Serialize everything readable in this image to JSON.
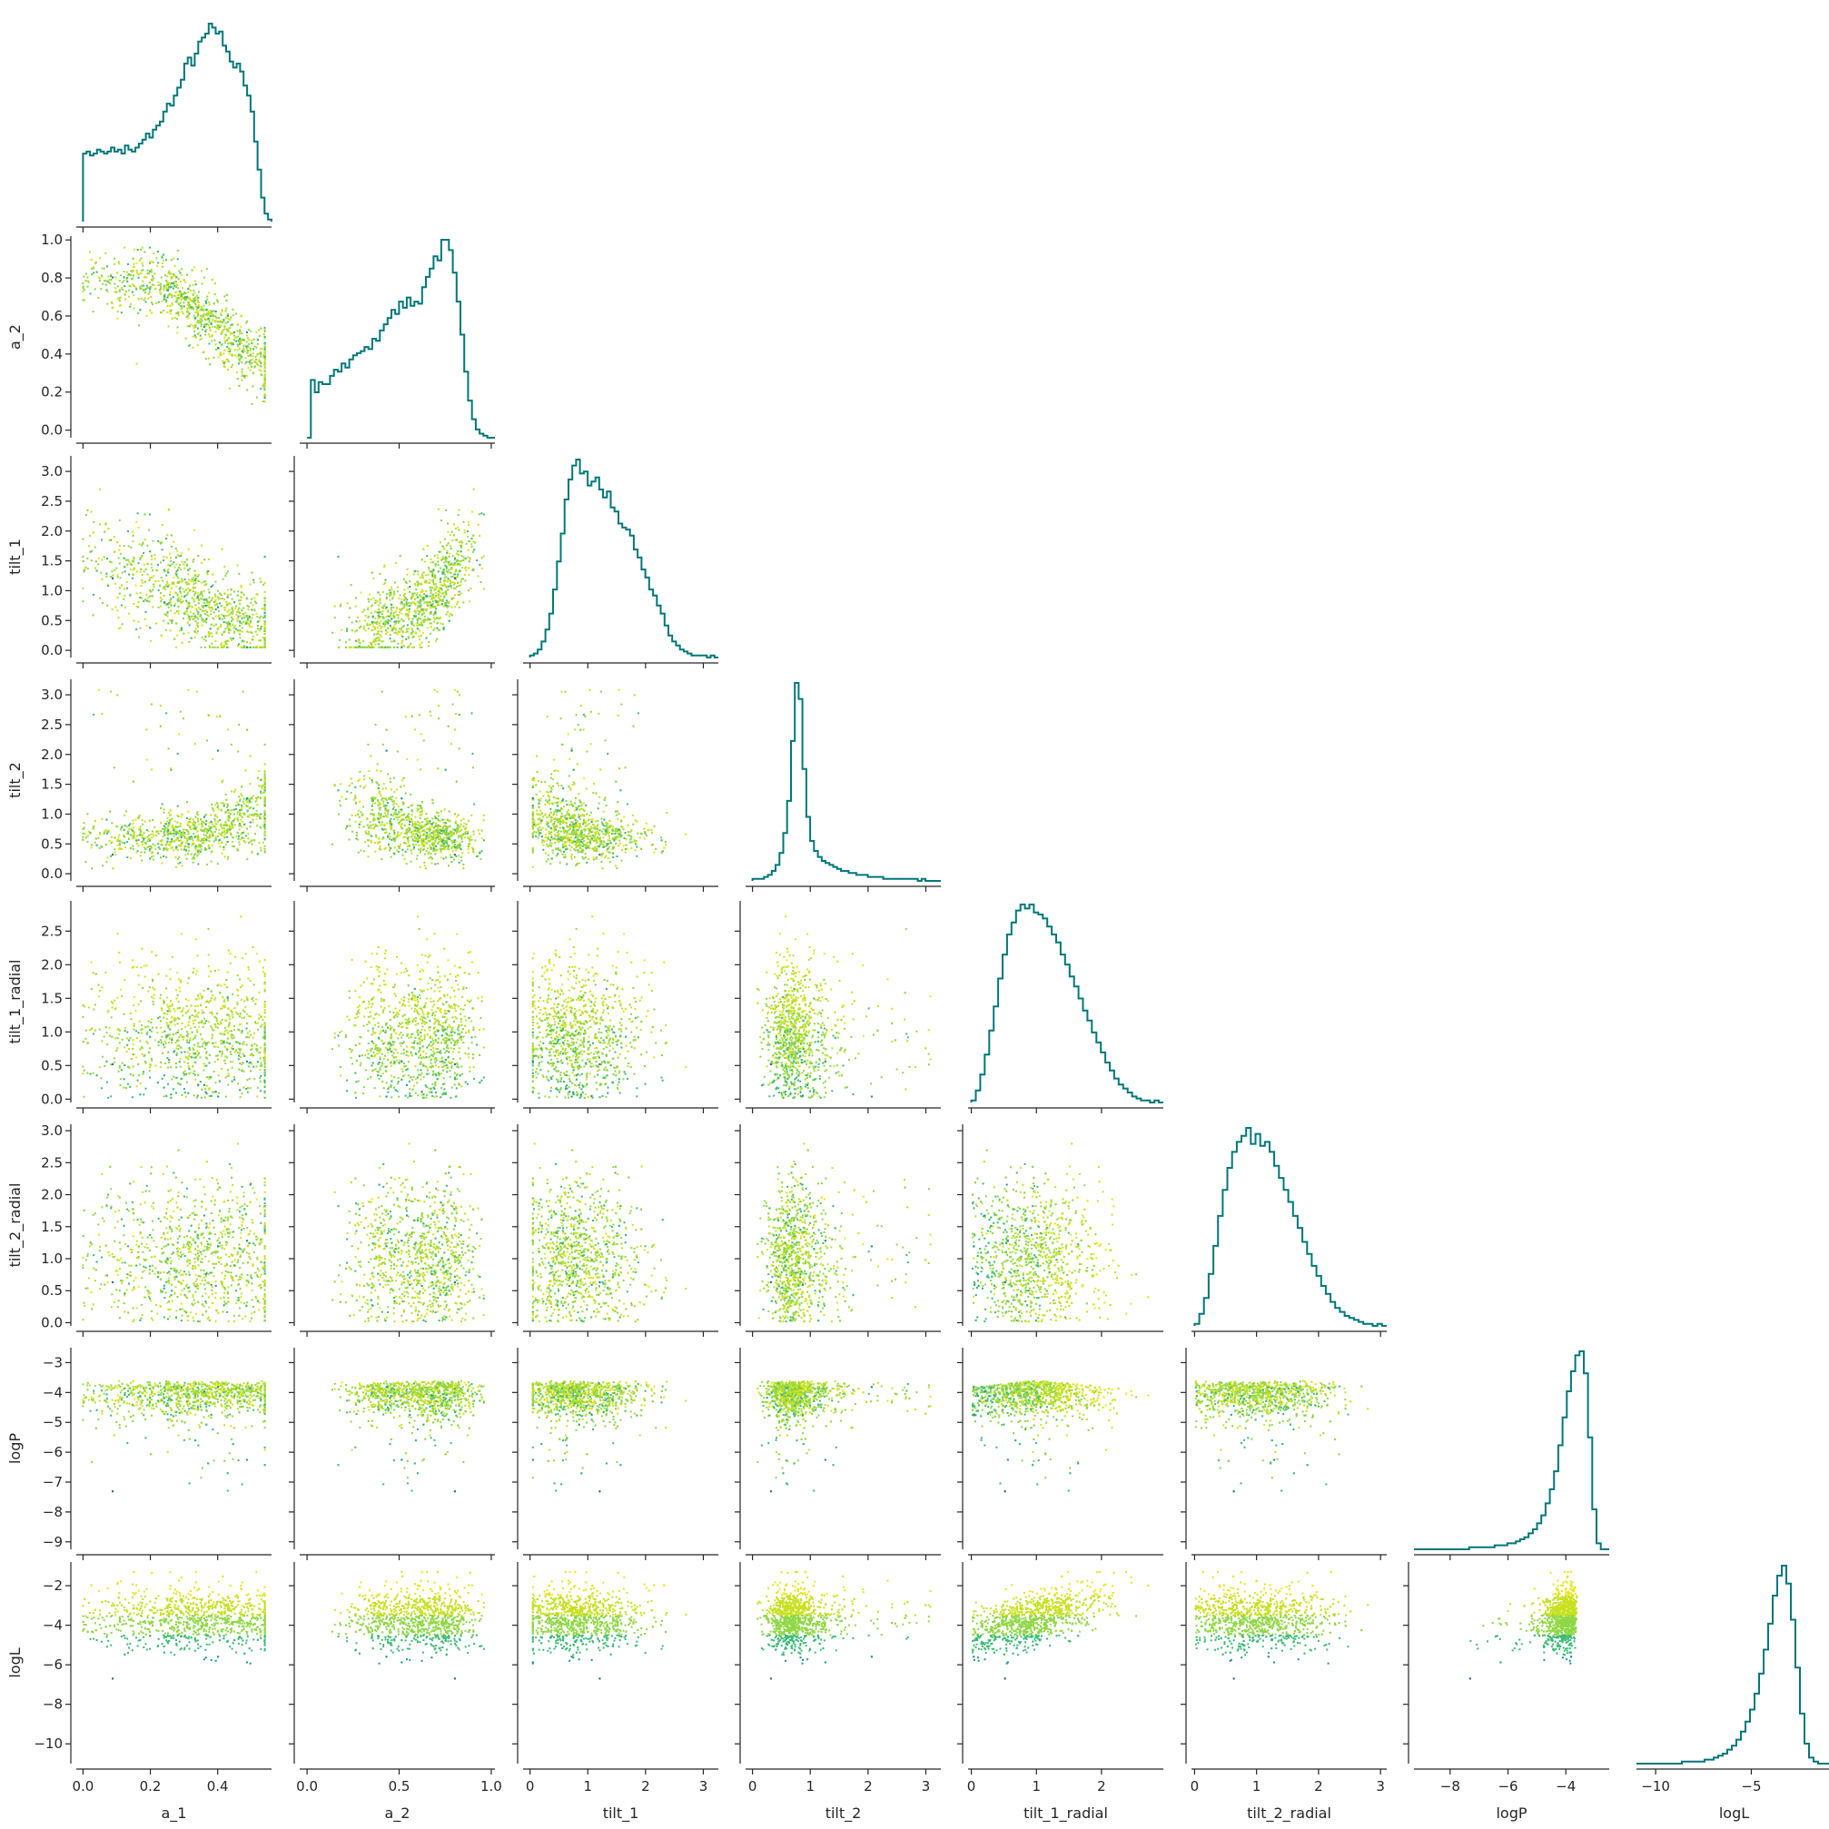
{
  "chart_data": {
    "type": "pairplot",
    "title": "",
    "variables": [
      "a_1",
      "a_2",
      "tilt_1",
      "tilt_2",
      "tilt_1_radial",
      "tilt_2_radial",
      "logP",
      "logL"
    ],
    "layout": "lower-triangle corner plot; histograms on diagonal, scatter below",
    "colors": {
      "histogram": "#00777a",
      "scatter_colormap": [
        "#2c6f8e",
        "#1f968b",
        "#3bba75",
        "#8fd744",
        "#c8e020",
        "#e7e419"
      ],
      "axis": "#262626"
    },
    "ranges": {
      "a_1": [
        -0.02,
        0.56
      ],
      "a_2": [
        -0.04,
        1.02
      ],
      "tilt_1": [
        -0.12,
        3.26
      ],
      "tilt_2": [
        -0.12,
        3.26
      ],
      "tilt_1_radial": [
        -0.05,
        2.95
      ],
      "tilt_2_radial": [
        -0.05,
        3.1
      ],
      "logP": [
        -9.25,
        -2.5
      ],
      "logL": [
        -11.0,
        -0.8
      ]
    },
    "ticks": {
      "a_1": [
        0.0,
        0.2,
        0.4
      ],
      "a_2": [
        0.0,
        0.2,
        0.4,
        0.6,
        0.8,
        1.0
      ],
      "a_2_x": [
        0.0,
        0.5,
        1.0
      ],
      "tilt_1": [
        0.0,
        0.5,
        1.0,
        1.5,
        2.0,
        2.5,
        3.0
      ],
      "tilt_1_x": [
        0,
        1,
        2,
        3
      ],
      "tilt_2": [
        0.0,
        0.5,
        1.0,
        1.5,
        2.0,
        2.5,
        3.0
      ],
      "tilt_2_x": [
        0,
        1,
        2,
        3
      ],
      "tilt_1_radial": [
        0.0,
        0.5,
        1.0,
        1.5,
        2.0,
        2.5
      ],
      "tilt_1_radial_x": [
        0,
        1,
        2
      ],
      "tilt_2_radial": [
        0.0,
        0.5,
        1.0,
        1.5,
        2.0,
        2.5,
        3.0
      ],
      "tilt_2_radial_x": [
        0,
        1,
        2,
        3
      ],
      "logP": [
        -9,
        -8,
        -7,
        -6,
        -5,
        -4,
        -3
      ],
      "logP_x": [
        -8,
        -6,
        -4
      ],
      "logL": [
        -10,
        -8,
        -6,
        -4,
        -2
      ],
      "logL_x": [
        -10,
        -5
      ]
    },
    "tick_labels": {
      "a_1": [
        "0.0",
        "0.2",
        "0.4"
      ],
      "a_2": [
        "0.0",
        "0.2",
        "0.4",
        "0.6",
        "0.8",
        "1.0"
      ],
      "a_2_x": [
        "0.0",
        "0.5",
        "1.0"
      ],
      "tilt_1": [
        "0.0",
        "0.5",
        "1.0",
        "1.5",
        "2.0",
        "2.5",
        "3.0"
      ],
      "tilt_1_x": [
        "0",
        "1",
        "2",
        "3"
      ],
      "tilt_2": [
        "0.0",
        "0.5",
        "1.0",
        "1.5",
        "2.0",
        "2.5",
        "3.0"
      ],
      "tilt_2_x": [
        "0",
        "1",
        "2",
        "3"
      ],
      "tilt_1_radial": [
        "0.0",
        "0.5",
        "1.0",
        "1.5",
        "2.0",
        "2.5"
      ],
      "tilt_1_radial_x": [
        "0",
        "1",
        "2"
      ],
      "tilt_2_radial": [
        "0.0",
        "0.5",
        "1.0",
        "1.5",
        "2.0",
        "2.5",
        "3.0"
      ],
      "tilt_2_radial_x": [
        "0",
        "1",
        "2",
        "3"
      ],
      "logP": [
        "−9",
        "−8",
        "−7",
        "−6",
        "−5",
        "−4",
        "−3"
      ],
      "logP_x": [
        "−8",
        "−6",
        "−4"
      ],
      "logL": [
        "−10",
        "−8",
        "−6",
        "−4",
        "−2"
      ],
      "logL_x": [
        "−10",
        "−5"
      ]
    },
    "histograms": {
      "a_1": {
        "start": 0.0,
        "end": 0.56,
        "counts": [
          34,
          35,
          33,
          34,
          36,
          35,
          34,
          35,
          37,
          35,
          36,
          34,
          38,
          36,
          35,
          37,
          39,
          41,
          44,
          42,
          46,
          48,
          50,
          55,
          59,
          58,
          63,
          67,
          71,
          79,
          82,
          78,
          84,
          90,
          92,
          94,
          99,
          97,
          94,
          95,
          88,
          85,
          80,
          77,
          79,
          75,
          68,
          63,
          55,
          40,
          26,
          12,
          4,
          1
        ]
      },
      "a_2": {
        "start": 0.0,
        "end": 1.02,
        "counts": [
          0,
          28,
          22,
          27,
          26,
          26,
          30,
          33,
          32,
          36,
          34,
          38,
          40,
          41,
          42,
          44,
          43,
          48,
          47,
          52,
          55,
          58,
          62,
          60,
          66,
          63,
          68,
          64,
          66,
          65,
          73,
          78,
          82,
          88,
          86,
          96,
          96,
          91,
          80,
          66,
          50,
          32,
          18,
          9,
          4,
          2,
          1,
          0,
          0
        ]
      },
      "tilt_1": {
        "start": 0.0,
        "end": 3.26,
        "counts": [
          1,
          2,
          4,
          8,
          14,
          22,
          34,
          48,
          62,
          79,
          89,
          96,
          99,
          92,
          93,
          86,
          88,
          90,
          84,
          80,
          83,
          75,
          73,
          67,
          65,
          64,
          61,
          54,
          50,
          44,
          40,
          34,
          31,
          26,
          22,
          16,
          11,
          8,
          6,
          4,
          3,
          2,
          1,
          1,
          1,
          1,
          0,
          1,
          0
        ]
      },
      "tilt_2": {
        "start": 0.0,
        "end": 3.26,
        "counts": [
          1,
          1,
          1,
          2,
          3,
          5,
          8,
          14,
          24,
          40,
          70,
          99,
          91,
          56,
          32,
          20,
          15,
          12,
          10,
          9,
          8,
          7,
          6,
          5,
          5,
          4,
          4,
          3,
          3,
          3,
          2,
          2,
          2,
          2,
          1,
          1,
          1,
          1,
          1,
          1,
          1,
          1,
          1,
          0,
          1,
          0,
          0,
          0,
          0
        ]
      },
      "tilt_1_radial": {
        "start": 0.0,
        "end": 2.95,
        "counts": [
          1,
          6,
          14,
          24,
          36,
          48,
          62,
          74,
          84,
          90,
          96,
          99,
          97,
          99,
          95,
          94,
          92,
          88,
          84,
          80,
          74,
          69,
          63,
          58,
          52,
          46,
          41,
          35,
          30,
          25,
          20,
          16,
          12,
          9,
          7,
          5,
          3,
          2,
          1,
          1,
          0,
          1,
          0
        ]
      },
      "tilt_2_radial": {
        "start": 0.0,
        "end": 3.1,
        "counts": [
          1,
          6,
          14,
          26,
          40,
          55,
          68,
          79,
          87,
          92,
          95,
          99,
          91,
          96,
          90,
          92,
          87,
          80,
          74,
          68,
          62,
          55,
          49,
          42,
          36,
          30,
          25,
          20,
          16,
          12,
          9,
          7,
          5,
          4,
          3,
          2,
          1,
          1,
          0,
          1,
          0
        ]
      },
      "logP": {
        "start": -9.25,
        "end": -2.5,
        "counts": [
          0,
          0,
          0,
          0,
          0,
          0,
          0,
          0,
          0,
          0,
          0,
          0,
          0,
          1,
          1,
          1,
          1,
          1,
          1,
          2,
          2,
          2,
          3,
          3,
          4,
          5,
          6,
          8,
          10,
          13,
          17,
          23,
          30,
          39,
          52,
          66,
          79,
          89,
          97,
          99,
          88,
          56,
          20,
          3,
          0,
          0
        ]
      },
      "logL": {
        "start": -11.0,
        "end": -0.8,
        "counts": [
          0,
          0,
          0,
          0,
          0,
          0,
          0,
          0,
          0,
          0,
          1,
          1,
          1,
          1,
          1,
          2,
          2,
          3,
          4,
          5,
          7,
          9,
          12,
          16,
          21,
          27,
          35,
          45,
          57,
          70,
          84,
          94,
          99,
          90,
          72,
          48,
          25,
          10,
          3,
          1,
          0,
          0,
          0
        ]
      }
    },
    "scatter": "simulated posterior samples, ~1200 points per panel, colored by logL"
  }
}
